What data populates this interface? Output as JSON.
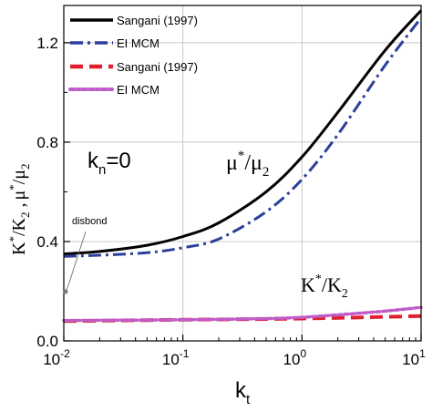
{
  "chart_data": {
    "type": "line",
    "x_scale": "log",
    "xlim": [
      0.01,
      10
    ],
    "ylim": [
      0,
      1.35
    ],
    "x_ticks": [
      {
        "value": 0.01,
        "base": "10",
        "exp": "-2"
      },
      {
        "value": 0.1,
        "base": "10",
        "exp": "-1"
      },
      {
        "value": 1,
        "base": "10",
        "exp": "0"
      },
      {
        "value": 10,
        "base": "10",
        "exp": "1"
      }
    ],
    "y_ticks": [
      {
        "value": 0.0,
        "label": "0.0"
      },
      {
        "value": 0.4,
        "label": "0.4"
      },
      {
        "value": 0.8,
        "label": "0.8"
      },
      {
        "value": 1.2,
        "label": "1.2"
      }
    ],
    "grid": true,
    "legend_placement": "top-left",
    "xlabel": {
      "main": "k",
      "sub": "t"
    },
    "ylabel": {
      "parts": [
        "K",
        "*",
        "/K",
        "2",
        " ,",
        "μ",
        "*",
        "/μ",
        "2"
      ]
    },
    "annotations": {
      "kn": {
        "main": "k",
        "sub": "n",
        "rest": "=0"
      },
      "mu_label": {
        "a": "μ",
        "sup": "*",
        "b": "/μ",
        "sub": "2"
      },
      "k_label": {
        "a": "K",
        "sup": "*",
        "b": "/K",
        "sub": "2"
      },
      "disbond": "disbond"
    },
    "series": [
      {
        "name": "Sangani (1997)",
        "color": "#000000",
        "style": "solid",
        "x": [
          0.01,
          0.02,
          0.05,
          0.1,
          0.2,
          0.5,
          1,
          2,
          5,
          10
        ],
        "values": [
          0.35,
          0.36,
          0.385,
          0.42,
          0.475,
          0.6,
          0.74,
          0.92,
          1.17,
          1.33
        ]
      },
      {
        "name": "EI MCM",
        "color": "#2b3f9a",
        "style": "dashdot",
        "x": [
          0.01,
          0.02,
          0.05,
          0.1,
          0.2,
          0.5,
          1,
          2,
          5,
          10
        ],
        "values": [
          0.34,
          0.345,
          0.355,
          0.375,
          0.41,
          0.52,
          0.65,
          0.83,
          1.11,
          1.3
        ]
      },
      {
        "name": "Sangani (1997)",
        "color": "#e0202e",
        "style": "dashed",
        "x": [
          0.01,
          0.1,
          1,
          10
        ],
        "values": [
          0.08,
          0.085,
          0.09,
          0.1
        ]
      },
      {
        "name": "EI MCM",
        "color": "#c05cc8",
        "style": "dotted",
        "x": [
          0.01,
          0.1,
          0.5,
          1,
          2,
          5,
          10
        ],
        "values": [
          0.082,
          0.085,
          0.09,
          0.095,
          0.105,
          0.12,
          0.135
        ]
      }
    ]
  }
}
